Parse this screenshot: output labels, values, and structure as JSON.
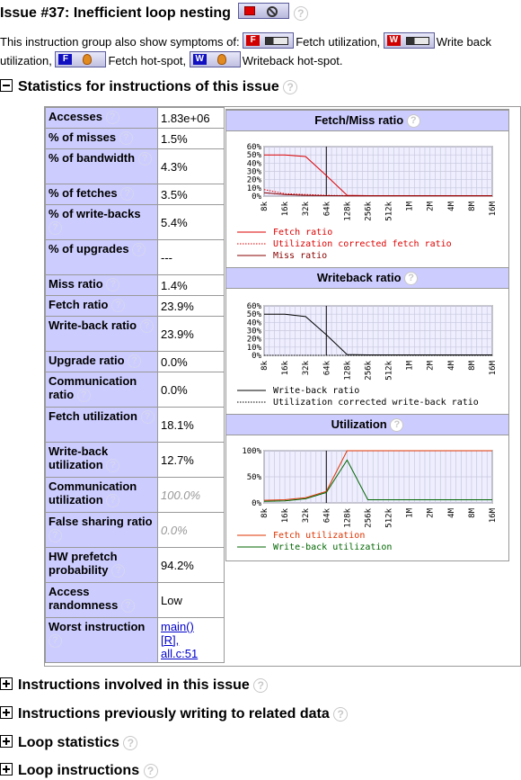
{
  "title": "Issue #37: Inefficient loop nesting",
  "symptoms": {
    "intro": "This instruction group also show symptoms of:",
    "items": [
      {
        "letter": "F",
        "type": "bar",
        "label": "Fetch utilization,"
      },
      {
        "letter": "W",
        "type": "bar",
        "label": "Write back utilization,"
      },
      {
        "letter": "F",
        "type": "flame",
        "label": "Fetch hot-spot,"
      },
      {
        "letter": "W",
        "type": "flame",
        "label": "Writeback hot-spot."
      }
    ]
  },
  "sections": {
    "statistics": "Statistics for instructions of this issue",
    "instructions": "Instructions involved in this issue",
    "previous": "Instructions previously writing to related data",
    "loop_stats": "Loop statistics",
    "loop_instr": "Loop instructions"
  },
  "help_glyph": "?",
  "stats": [
    {
      "label": "Accesses",
      "value": "1.83e+06"
    },
    {
      "label": "% of misses",
      "value": "1.5%"
    },
    {
      "label": "% of bandwidth",
      "value": "4.3%"
    },
    {
      "label": "% of fetches",
      "value": "3.5%"
    },
    {
      "label": "% of write-backs",
      "value": "5.4%"
    },
    {
      "label": "% of upgrades",
      "value": "---"
    },
    {
      "label": "Miss ratio",
      "value": "1.4%"
    },
    {
      "label": "Fetch ratio",
      "value": "23.9%"
    },
    {
      "label": "Write-back ratio",
      "value": "23.9%"
    },
    {
      "label": "Upgrade ratio",
      "value": "0.0%"
    },
    {
      "label": "Communication ratio",
      "value": "0.0%"
    },
    {
      "label": "Fetch utilization",
      "value": "18.1%"
    },
    {
      "label": "Write-back utilization",
      "value": "12.7%"
    },
    {
      "label": "Communication utilization",
      "value": "100.0%",
      "gray": true
    },
    {
      "label": "False sharing ratio",
      "value": "0.0%",
      "gray": true
    },
    {
      "label": "HW prefetch probability",
      "value": "94.2%"
    },
    {
      "label": "Access randomness",
      "value": "Low"
    },
    {
      "label": "Worst instruction",
      "links": [
        "main()",
        "[R],",
        "all.c:51"
      ]
    }
  ],
  "chart_data": [
    {
      "type": "line",
      "title": "Fetch/Miss ratio",
      "x": [
        "8k",
        "16k",
        "32k",
        "64k",
        "128k",
        "256k",
        "512k",
        "1M",
        "2M",
        "4M",
        "8M",
        "16M"
      ],
      "yticks": [
        "60%",
        "50%",
        "40%",
        "30%",
        "20%",
        "10%",
        "0%"
      ],
      "ylim": [
        0,
        60
      ],
      "marker_x": "64k",
      "series": [
        {
          "name": "Fetch ratio",
          "color": "#dd0000",
          "dash": "solid",
          "values": [
            50,
            50,
            48,
            25,
            1,
            0.5,
            0.5,
            0.5,
            0.5,
            0.5,
            0.5,
            0.5
          ]
        },
        {
          "name": "Utilization corrected fetch ratio",
          "color": "#dd0000",
          "dash": "dotted",
          "values": [
            8,
            3,
            2,
            1,
            0.5,
            0.5,
            0.5,
            0.5,
            0.5,
            0.5,
            0.5,
            0.5
          ]
        },
        {
          "name": "Miss ratio",
          "color": "#880000",
          "dash": "solid",
          "values": [
            4,
            2,
            1,
            0.5,
            0.3,
            0.3,
            0.3,
            0.3,
            0.3,
            0.3,
            0.3,
            0.3
          ]
        }
      ]
    },
    {
      "type": "line",
      "title": "Writeback ratio",
      "x": [
        "8k",
        "16k",
        "32k",
        "64k",
        "128k",
        "256k",
        "512k",
        "1M",
        "2M",
        "4M",
        "8M",
        "16M"
      ],
      "yticks": [
        "60%",
        "50%",
        "40%",
        "30%",
        "20%",
        "10%",
        "0%"
      ],
      "ylim": [
        0,
        60
      ],
      "marker_x": "64k",
      "series": [
        {
          "name": "Write-back ratio",
          "color": "#000000",
          "dash": "solid",
          "values": [
            50,
            50,
            47,
            25,
            1,
            0.5,
            0.5,
            0.5,
            0.5,
            0.5,
            0.5,
            0.5
          ]
        },
        {
          "name": "Utilization corrected write-back ratio",
          "color": "#000000",
          "dash": "dotted",
          "values": [
            0,
            0,
            0,
            0,
            0,
            0,
            0,
            0,
            0,
            0,
            0,
            0
          ]
        }
      ]
    },
    {
      "type": "line",
      "title": "Utilization",
      "x": [
        "8k",
        "16k",
        "32k",
        "64k",
        "128k",
        "256k",
        "512k",
        "1M",
        "2M",
        "4M",
        "8M",
        "16M"
      ],
      "yticks": [
        "100%",
        "50%",
        "0%"
      ],
      "ylim": [
        0,
        100
      ],
      "marker_x": "64k",
      "series": [
        {
          "name": "Fetch utilization",
          "color": "#dd3300",
          "dash": "solid",
          "values": [
            5,
            6,
            10,
            22,
            100,
            100,
            100,
            100,
            100,
            100,
            100,
            100
          ]
        },
        {
          "name": "Write-back utilization",
          "color": "#006600",
          "dash": "solid",
          "values": [
            3,
            4,
            8,
            20,
            82,
            6,
            6,
            6,
            6,
            6,
            6,
            6
          ]
        }
      ]
    }
  ]
}
